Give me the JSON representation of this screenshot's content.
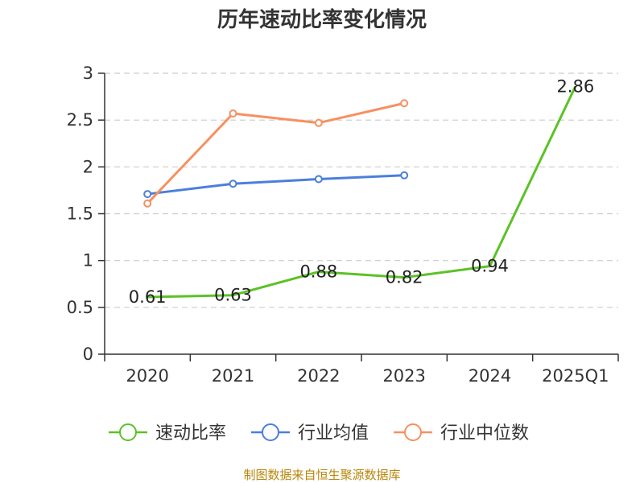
{
  "chart_data": {
    "type": "line",
    "title": "历年速动比率变化情况",
    "categories": [
      "2020",
      "2021",
      "2022",
      "2023",
      "2024",
      "2025Q1"
    ],
    "ylim": [
      0,
      3
    ],
    "yticks": [
      "0",
      "0.5",
      "1",
      "1.5",
      "2",
      "2.5",
      "3"
    ],
    "grid": true,
    "legend_position": "bottom",
    "series": [
      {
        "name": "速动比率",
        "color": "#5cc226",
        "values": [
          0.61,
          0.63,
          0.88,
          0.82,
          0.94,
          2.86
        ],
        "labels": [
          "0.61",
          "0.63",
          "0.88",
          "0.82",
          "0.94",
          "2.86"
        ]
      },
      {
        "name": "行业均值",
        "color": "#4a7fdc",
        "values": [
          1.71,
          1.82,
          1.87,
          1.91,
          null,
          null
        ]
      },
      {
        "name": "行业中位数",
        "color": "#f79060",
        "values": [
          1.61,
          2.57,
          2.47,
          2.68,
          null,
          null
        ]
      }
    ],
    "source": "制图数据来自恒生聚源数据库"
  }
}
